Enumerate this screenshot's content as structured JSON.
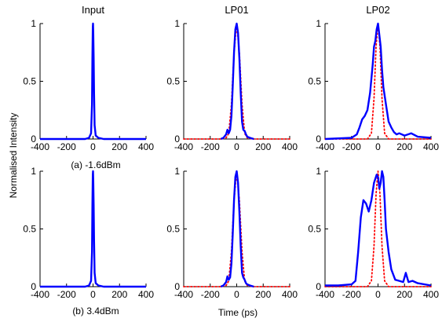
{
  "figure": {
    "shared_ylabel": "Normalised Intensity",
    "shared_xlabel": "Time (ps)",
    "row_labels": [
      "(a) -1.6dBm",
      "(b) 3.4dBm"
    ],
    "column_titles": [
      "Input",
      "LP01",
      "LP02"
    ]
  },
  "colors": {
    "measured": "#0000ff",
    "reference": "#ff0000"
  },
  "chart_data": [
    {
      "type": "line",
      "title": "Input",
      "row": "(a) -1.6dBm",
      "xlim": [
        -400,
        400
      ],
      "ylim": [
        0,
        1
      ],
      "xticks": [
        -400,
        -200,
        0,
        200,
        400
      ],
      "yticks": [
        0,
        0.5,
        1
      ],
      "grid": false,
      "series": [
        {
          "style": "solid",
          "color": "#0000ff",
          "x": [
            -400,
            -60,
            -30,
            -15,
            -8,
            -5,
            -2,
            0,
            2,
            5,
            8,
            12,
            20,
            40,
            80,
            400
          ],
          "y": [
            0,
            0,
            0.01,
            0.05,
            0.3,
            0.7,
            0.97,
            1.0,
            0.92,
            0.7,
            0.4,
            0.12,
            0.03,
            0.01,
            0,
            0
          ]
        }
      ]
    },
    {
      "type": "line",
      "title": "LP01",
      "row": "(a) -1.6dBm",
      "xlim": [
        -400,
        400
      ],
      "ylim": [
        0,
        1
      ],
      "xticks": [
        -400,
        -200,
        0,
        200,
        400
      ],
      "yticks": [
        0,
        0.5,
        1
      ],
      "grid": false,
      "series": [
        {
          "style": "solid",
          "color": "#0000ff",
          "x": [
            -120,
            -100,
            -80,
            -70,
            -60,
            -50,
            -40,
            -30,
            -20,
            -10,
            0,
            10,
            20,
            30,
            40,
            50,
            60,
            70,
            80,
            100,
            130
          ],
          "y": [
            0,
            0.01,
            0.04,
            0.08,
            0.05,
            0.08,
            0.2,
            0.45,
            0.75,
            0.95,
            1.0,
            0.92,
            0.7,
            0.4,
            0.15,
            0.08,
            0.07,
            0.04,
            0.02,
            0.01,
            0
          ]
        },
        {
          "style": "dotted",
          "color": "#ff0000",
          "x": [
            -400,
            -120,
            -80,
            -60,
            -40,
            -20,
            0,
            20,
            40,
            60,
            80,
            120,
            400
          ],
          "y": [
            0,
            0,
            0.01,
            0.05,
            0.3,
            0.75,
            1.0,
            0.75,
            0.3,
            0.05,
            0.01,
            0,
            0
          ]
        }
      ]
    },
    {
      "type": "line",
      "title": "LP02",
      "row": "(a) -1.6dBm",
      "xlim": [
        -400,
        400
      ],
      "ylim": [
        0,
        1
      ],
      "xticks": [
        -400,
        -200,
        0,
        200,
        400
      ],
      "yticks": [
        0,
        0.5,
        1
      ],
      "grid": false,
      "series": [
        {
          "style": "solid",
          "color": "#0000ff",
          "x": [
            -400,
            -200,
            -160,
            -140,
            -120,
            -100,
            -80,
            -60,
            -40,
            -30,
            -20,
            -10,
            0,
            10,
            20,
            30,
            40,
            60,
            80,
            100,
            120,
            140,
            160,
            200,
            250,
            300,
            400
          ],
          "y": [
            0,
            0.01,
            0.04,
            0.1,
            0.17,
            0.2,
            0.25,
            0.4,
            0.65,
            0.8,
            0.85,
            0.95,
            1.0,
            0.9,
            0.8,
            0.6,
            0.45,
            0.3,
            0.15,
            0.1,
            0.06,
            0.04,
            0.05,
            0.03,
            0.05,
            0.02,
            0.01
          ]
        },
        {
          "style": "dotted",
          "color": "#ff0000",
          "x": [
            -400,
            -80,
            -50,
            -30,
            -15,
            0,
            15,
            30,
            50,
            80,
            400
          ],
          "y": [
            0,
            0,
            0.05,
            0.35,
            0.8,
            1.0,
            0.8,
            0.35,
            0.05,
            0,
            0
          ]
        }
      ]
    },
    {
      "type": "line",
      "title": "Input",
      "row": "(b) 3.4dBm",
      "xlim": [
        -400,
        400
      ],
      "ylim": [
        0,
        1
      ],
      "xticks": [
        -400,
        -200,
        0,
        200,
        400
      ],
      "yticks": [
        0,
        0.5,
        1
      ],
      "grid": false,
      "series": [
        {
          "style": "solid",
          "color": "#0000ff",
          "x": [
            -400,
            -60,
            -30,
            -15,
            -8,
            -5,
            -2,
            0,
            2,
            5,
            8,
            12,
            20,
            40,
            80,
            400
          ],
          "y": [
            0,
            0,
            0.01,
            0.05,
            0.3,
            0.7,
            0.97,
            1.0,
            0.92,
            0.7,
            0.4,
            0.12,
            0.03,
            0.01,
            0,
            0
          ]
        }
      ]
    },
    {
      "type": "line",
      "title": "LP01",
      "row": "(b) 3.4dBm",
      "xlim": [
        -400,
        400
      ],
      "ylim": [
        0,
        1
      ],
      "xticks": [
        -400,
        -200,
        0,
        200,
        400
      ],
      "yticks": [
        0,
        0.5,
        1
      ],
      "grid": false,
      "series": [
        {
          "style": "solid",
          "color": "#0000ff",
          "x": [
            -120,
            -100,
            -80,
            -70,
            -60,
            -50,
            -40,
            -30,
            -20,
            -10,
            0,
            10,
            20,
            30,
            40,
            50,
            60,
            70,
            80,
            100,
            130
          ],
          "y": [
            0,
            0.01,
            0.04,
            0.09,
            0.06,
            0.08,
            0.2,
            0.45,
            0.75,
            0.95,
            1.0,
            0.9,
            0.65,
            0.35,
            0.12,
            0.08,
            0.06,
            0.03,
            0.02,
            0.01,
            0
          ]
        },
        {
          "style": "dotted",
          "color": "#ff0000",
          "x": [
            -400,
            -120,
            -80,
            -60,
            -40,
            -20,
            0,
            20,
            40,
            60,
            80,
            120,
            400
          ],
          "y": [
            0,
            0,
            0.01,
            0.05,
            0.3,
            0.75,
            1.0,
            0.75,
            0.3,
            0.05,
            0.01,
            0,
            0
          ]
        }
      ]
    },
    {
      "type": "line",
      "title": "LP02",
      "row": "(b) 3.4dBm",
      "xlim": [
        -400,
        400
      ],
      "ylim": [
        0,
        1
      ],
      "xticks": [
        -400,
        -200,
        0,
        200,
        400
      ],
      "yticks": [
        0,
        0.5,
        1
      ],
      "grid": false,
      "series": [
        {
          "style": "solid",
          "color": "#0000ff",
          "x": [
            -400,
            -300,
            -200,
            -170,
            -150,
            -130,
            -110,
            -90,
            -70,
            -50,
            -30,
            -10,
            0,
            10,
            20,
            30,
            40,
            50,
            60,
            80,
            100,
            130,
            160,
            190,
            210,
            230,
            260,
            300,
            400
          ],
          "y": [
            0.01,
            0.01,
            0.02,
            0.05,
            0.3,
            0.6,
            0.75,
            0.72,
            0.65,
            0.75,
            0.9,
            0.97,
            0.95,
            0.85,
            0.9,
            1.0,
            0.95,
            0.75,
            0.5,
            0.3,
            0.15,
            0.06,
            0.05,
            0.04,
            0.12,
            0.04,
            0.05,
            0.03,
            0.01
          ]
        },
        {
          "style": "dotted",
          "color": "#ff0000",
          "x": [
            -400,
            -80,
            -50,
            -30,
            -15,
            0,
            15,
            30,
            50,
            80,
            400
          ],
          "y": [
            0,
            0,
            0.05,
            0.35,
            0.8,
            1.0,
            0.8,
            0.35,
            0.05,
            0,
            0
          ]
        }
      ]
    }
  ]
}
